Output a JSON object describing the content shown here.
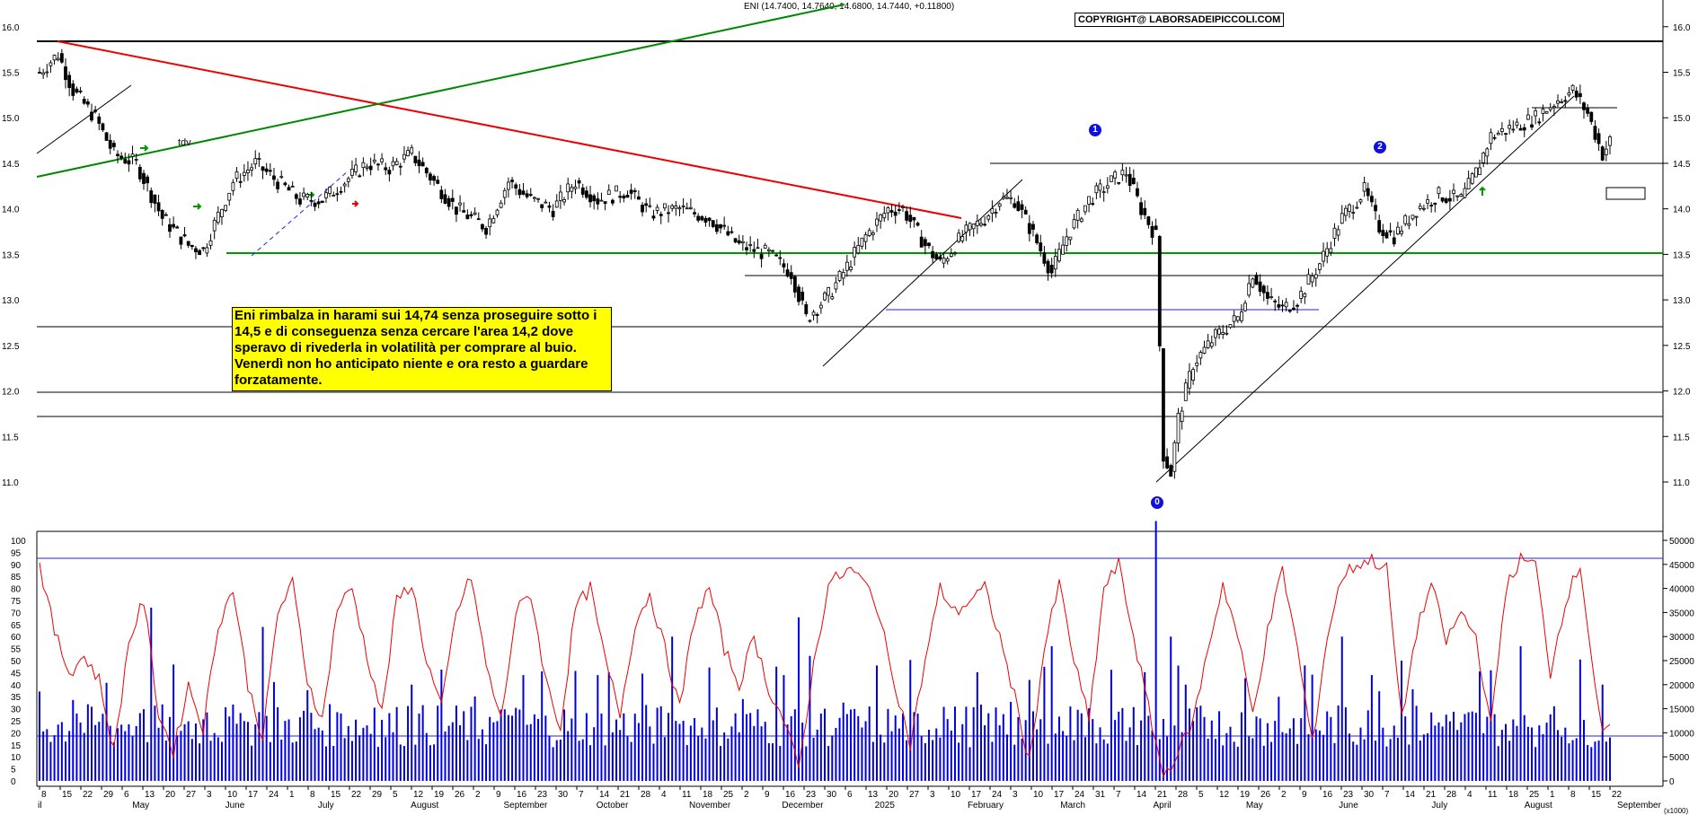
{
  "header": {
    "quote": "ENI (14.7400, 14.7640, 14.6800, 14.7440, +0.11800)",
    "copyright": "COPYRIGHT@ LABORSADEIPICCOLI.COM"
  },
  "annotation": {
    "text": "Eni rimbalza in harami sui 14,74 senza proseguire sotto i 14,5 e di conseguenza senza cercare l'area 14,2 dove speravo di rivederla in volatilità per comprare al buio. Venerdì non ho anticipato niente e ora resto a guardare forzatamente."
  },
  "badges": {
    "zero": "0",
    "one": "1",
    "two": "2"
  },
  "markers": {
    "tdv": "tdv"
  },
  "colors": {
    "price": "#000000",
    "volume": "#0000dd",
    "oscillator": "#ee0000",
    "trend_red": "#ee0000",
    "trend_green": "#008800",
    "support_green": "#009900",
    "blue_line": "#2222dd",
    "annotation_bg": "#ffff00"
  },
  "axes": {
    "price_ticks": [
      "16.0",
      "15.5",
      "15.0",
      "14.5",
      "14.0",
      "13.5",
      "13.0",
      "12.5",
      "12.0",
      "11.5",
      "11.0"
    ],
    "osc_ticks": [
      "100",
      "95",
      "90",
      "85",
      "80",
      "75",
      "70",
      "65",
      "60",
      "55",
      "50",
      "45",
      "40",
      "35",
      "30",
      "25",
      "20",
      "15",
      "10",
      "5",
      "0"
    ],
    "vol_ticks": [
      "50000",
      "45000",
      "40000",
      "35000",
      "30000",
      "25000",
      "20000",
      "15000",
      "10000",
      "5000",
      "0"
    ],
    "vol_unit": "(x1000)",
    "day_ticks": [
      "8",
      "15",
      "22",
      "29",
      "6",
      "13",
      "20",
      "27",
      "3",
      "10",
      "17",
      "24",
      "1",
      "8",
      "15",
      "22",
      "29",
      "5",
      "12",
      "19",
      "26",
      "2",
      "9",
      "16",
      "23",
      "30",
      "7",
      "14",
      "21",
      "28",
      "4",
      "11",
      "18",
      "25",
      "2",
      "9",
      "16",
      "23",
      "30",
      "6",
      "13",
      "20",
      "27",
      "3",
      "10",
      "17",
      "24",
      "3",
      "10",
      "17",
      "24",
      "31",
      "7",
      "14",
      "21",
      "28",
      "5",
      "12",
      "19",
      "26",
      "2",
      "9",
      "16",
      "23",
      "30",
      "7",
      "14",
      "21",
      "28",
      "4",
      "11",
      "18",
      "25",
      "1",
      "8",
      "15",
      "22"
    ],
    "months": [
      "il",
      "May",
      "June",
      "July",
      "August",
      "September",
      "October",
      "November",
      "December",
      "2025",
      "February",
      "March",
      "April",
      "May",
      "June",
      "July",
      "August",
      "September"
    ]
  },
  "chart_data": {
    "type": "candlestick",
    "instrument": "ENI",
    "price_ylim": [
      10.8,
      16.3
    ],
    "levels": [
      15.84,
      14.5,
      13.5,
      13.25,
      12.7,
      11.97,
      11.7
    ],
    "last": {
      "open": 14.74,
      "high": 14.764,
      "low": 14.68,
      "close": 14.744,
      "change": 0.118
    },
    "price_path": [
      [
        0,
        15.5
      ],
      [
        5,
        15.7
      ],
      [
        9,
        15.3
      ],
      [
        15,
        15.0
      ],
      [
        20,
        14.6
      ],
      [
        26,
        14.5
      ],
      [
        33,
        13.9
      ],
      [
        40,
        13.6
      ],
      [
        44,
        13.55
      ],
      [
        52,
        14.3
      ],
      [
        58,
        14.5
      ],
      [
        64,
        14.3
      ],
      [
        70,
        14.1
      ],
      [
        76,
        14.1
      ],
      [
        82,
        14.3
      ],
      [
        88,
        14.5
      ],
      [
        94,
        14.45
      ],
      [
        100,
        14.6
      ],
      [
        106,
        14.3
      ],
      [
        112,
        14.0
      ],
      [
        120,
        13.8
      ],
      [
        126,
        14.3
      ],
      [
        132,
        14.1
      ],
      [
        138,
        14.0
      ],
      [
        144,
        14.3
      ],
      [
        150,
        14.1
      ],
      [
        158,
        14.2
      ],
      [
        164,
        13.95
      ],
      [
        172,
        14.0
      ],
      [
        180,
        13.9
      ],
      [
        188,
        13.6
      ],
      [
        196,
        13.5
      ],
      [
        202,
        13.3
      ],
      [
        206,
        12.8
      ],
      [
        212,
        13.05
      ],
      [
        216,
        13.3
      ],
      [
        222,
        13.7
      ],
      [
        228,
        14.0
      ],
      [
        232,
        14.0
      ],
      [
        238,
        13.6
      ],
      [
        242,
        13.4
      ],
      [
        248,
        13.7
      ],
      [
        254,
        13.9
      ],
      [
        258,
        14.1
      ],
      [
        262,
        14.1
      ],
      [
        266,
        13.8
      ],
      [
        272,
        13.3
      ],
      [
        276,
        13.7
      ],
      [
        282,
        14.1
      ],
      [
        288,
        14.3
      ],
      [
        292,
        14.4
      ],
      [
        296,
        14.0
      ],
      [
        300,
        13.7
      ],
      [
        302,
        11.3
      ],
      [
        304,
        11.1
      ],
      [
        306,
        11.7
      ],
      [
        310,
        12.3
      ],
      [
        316,
        12.6
      ],
      [
        322,
        12.8
      ],
      [
        326,
        13.3
      ],
      [
        330,
        13.0
      ],
      [
        334,
        12.9
      ],
      [
        338,
        13.0
      ],
      [
        344,
        13.4
      ],
      [
        350,
        13.9
      ],
      [
        356,
        14.2
      ],
      [
        360,
        13.8
      ],
      [
        364,
        13.7
      ],
      [
        370,
        14.0
      ],
      [
        376,
        14.15
      ],
      [
        382,
        14.1
      ],
      [
        386,
        14.4
      ],
      [
        390,
        14.8
      ],
      [
        396,
        14.9
      ],
      [
        402,
        15.0
      ],
      [
        408,
        15.2
      ],
      [
        412,
        15.3
      ],
      [
        416,
        15.05
      ],
      [
        420,
        14.6
      ],
      [
        422,
        14.74
      ]
    ],
    "osc_ylim": [
      0,
      100
    ],
    "osc_level": 90,
    "osc_path": [
      [
        0,
        90
      ],
      [
        4,
        62
      ],
      [
        8,
        45
      ],
      [
        12,
        52
      ],
      [
        16,
        42
      ],
      [
        20,
        12
      ],
      [
        24,
        58
      ],
      [
        28,
        75
      ],
      [
        32,
        28
      ],
      [
        36,
        12
      ],
      [
        40,
        40
      ],
      [
        44,
        22
      ],
      [
        48,
        65
      ],
      [
        52,
        80
      ],
      [
        56,
        40
      ],
      [
        60,
        18
      ],
      [
        64,
        70
      ],
      [
        68,
        82
      ],
      [
        72,
        42
      ],
      [
        76,
        25
      ],
      [
        80,
        72
      ],
      [
        84,
        80
      ],
      [
        88,
        52
      ],
      [
        92,
        28
      ],
      [
        96,
        75
      ],
      [
        100,
        82
      ],
      [
        104,
        50
      ],
      [
        108,
        30
      ],
      [
        112,
        70
      ],
      [
        116,
        85
      ],
      [
        120,
        48
      ],
      [
        124,
        25
      ],
      [
        128,
        70
      ],
      [
        132,
        78
      ],
      [
        136,
        42
      ],
      [
        140,
        22
      ],
      [
        144,
        72
      ],
      [
        148,
        80
      ],
      [
        152,
        50
      ],
      [
        156,
        28
      ],
      [
        160,
        65
      ],
      [
        164,
        78
      ],
      [
        168,
        55
      ],
      [
        172,
        30
      ],
      [
        176,
        68
      ],
      [
        180,
        80
      ],
      [
        184,
        55
      ],
      [
        188,
        40
      ],
      [
        192,
        60
      ],
      [
        196,
        38
      ],
      [
        200,
        25
      ],
      [
        204,
        5
      ],
      [
        208,
        48
      ],
      [
        212,
        82
      ],
      [
        218,
        88
      ],
      [
        224,
        78
      ],
      [
        230,
        40
      ],
      [
        234,
        15
      ],
      [
        238,
        50
      ],
      [
        242,
        80
      ],
      [
        246,
        70
      ],
      [
        250,
        75
      ],
      [
        254,
        80
      ],
      [
        258,
        60
      ],
      [
        262,
        35
      ],
      [
        266,
        8
      ],
      [
        270,
        55
      ],
      [
        274,
        82
      ],
      [
        278,
        50
      ],
      [
        282,
        25
      ],
      [
        286,
        80
      ],
      [
        290,
        90
      ],
      [
        294,
        60
      ],
      [
        298,
        30
      ],
      [
        302,
        2
      ],
      [
        306,
        12
      ],
      [
        310,
        25
      ],
      [
        314,
        55
      ],
      [
        318,
        82
      ],
      [
        322,
        60
      ],
      [
        326,
        28
      ],
      [
        330,
        62
      ],
      [
        334,
        88
      ],
      [
        338,
        55
      ],
      [
        342,
        15
      ],
      [
        346,
        60
      ],
      [
        350,
        85
      ],
      [
        354,
        90
      ],
      [
        358,
        92
      ],
      [
        362,
        88
      ],
      [
        366,
        25
      ],
      [
        370,
        62
      ],
      [
        374,
        82
      ],
      [
        378,
        58
      ],
      [
        382,
        70
      ],
      [
        386,
        60
      ],
      [
        390,
        22
      ],
      [
        394,
        80
      ],
      [
        398,
        92
      ],
      [
        402,
        90
      ],
      [
        406,
        45
      ],
      [
        410,
        75
      ],
      [
        414,
        90
      ],
      [
        418,
        40
      ],
      [
        420,
        18
      ],
      [
        422,
        22
      ]
    ],
    "vol_ylim": [
      0,
      50000
    ],
    "vol_level": 10000,
    "vol_spikes": [
      [
        10,
        14000
      ],
      [
        30,
        36000
      ],
      [
        60,
        32000
      ],
      [
        100,
        20000
      ],
      [
        130,
        22000
      ],
      [
        150,
        22000
      ],
      [
        170,
        30000
      ],
      [
        200,
        22000
      ],
      [
        204,
        34000
      ],
      [
        210,
        14000
      ],
      [
        236,
        14000
      ],
      [
        266,
        21000
      ],
      [
        272,
        28000
      ],
      [
        300,
        56000
      ],
      [
        304,
        30000
      ],
      [
        308,
        20000
      ],
      [
        328,
        13000
      ],
      [
        340,
        24000
      ],
      [
        350,
        30000
      ],
      [
        358,
        22000
      ],
      [
        366,
        25000
      ],
      [
        390,
        23000
      ],
      [
        398,
        28000
      ],
      [
        420,
        20000
      ]
    ]
  }
}
